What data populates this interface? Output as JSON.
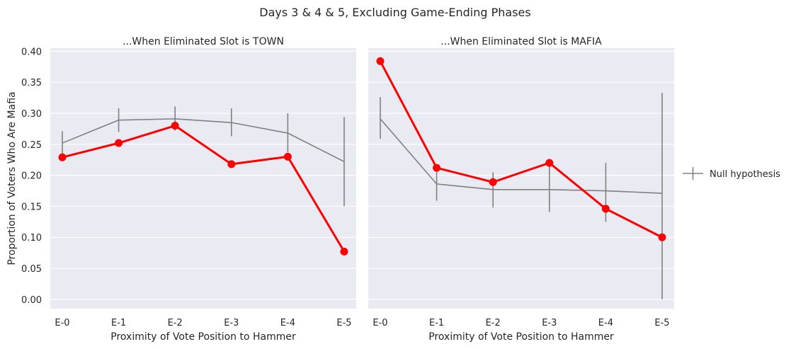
{
  "figure": {
    "suptitle": "Days 3 & 4 & 5, Excluding Game-Ending Phases",
    "ylabel": "Proportion of Voters Who Are Mafia",
    "legend_label": "Null hypothesis"
  },
  "chart_data": [
    {
      "type": "line",
      "title": "...When Eliminated Slot is TOWN",
      "xlabel": "Proximity of Vote Position to Hammer",
      "ylabel": "Proportion of Voters Who Are Mafia",
      "categories": [
        "E-0",
        "E-1",
        "E-2",
        "E-3",
        "E-4",
        "E-5"
      ],
      "ylim": [
        -0.015,
        0.405
      ],
      "yticks": [
        "0.00",
        "0.05",
        "0.10",
        "0.15",
        "0.20",
        "0.25",
        "0.30",
        "0.35",
        "0.40"
      ],
      "grid": true,
      "colors": {
        "observed": "#ff0000",
        "null": "#808080",
        "background": "#eaeaf2"
      },
      "series": [
        {
          "name": "",
          "values": [
            0.229,
            0.252,
            0.28,
            0.218,
            0.23,
            0.077
          ]
        },
        {
          "name": "Null hypothesis",
          "values": [
            0.252,
            0.289,
            0.291,
            0.285,
            0.268,
            0.222
          ],
          "error_low": [
            0.233,
            0.27,
            0.272,
            0.263,
            0.237,
            0.15
          ],
          "error_high": [
            0.271,
            0.308,
            0.311,
            0.308,
            0.3,
            0.294
          ]
        }
      ]
    },
    {
      "type": "line",
      "title": "...When Eliminated Slot is MAFIA",
      "xlabel": "Proximity of Vote Position to Hammer",
      "ylabel": "",
      "categories": [
        "E-0",
        "E-1",
        "E-2",
        "E-3",
        "E-4",
        "E-5"
      ],
      "ylim": [
        -0.015,
        0.405
      ],
      "grid": true,
      "colors": {
        "observed": "#ff0000",
        "null": "#808080",
        "background": "#eaeaf2"
      },
      "series": [
        {
          "name": "",
          "values": [
            0.384,
            0.212,
            0.189,
            0.22,
            0.146,
            0.1
          ]
        },
        {
          "name": "Null hypothesis",
          "values": [
            0.291,
            0.186,
            0.177,
            0.177,
            0.175,
            0.171
          ],
          "error_low": [
            0.259,
            0.159,
            0.148,
            0.141,
            0.125,
            0.0
          ],
          "error_high": [
            0.326,
            0.212,
            0.205,
            0.215,
            0.22,
            0.333
          ]
        }
      ]
    }
  ]
}
